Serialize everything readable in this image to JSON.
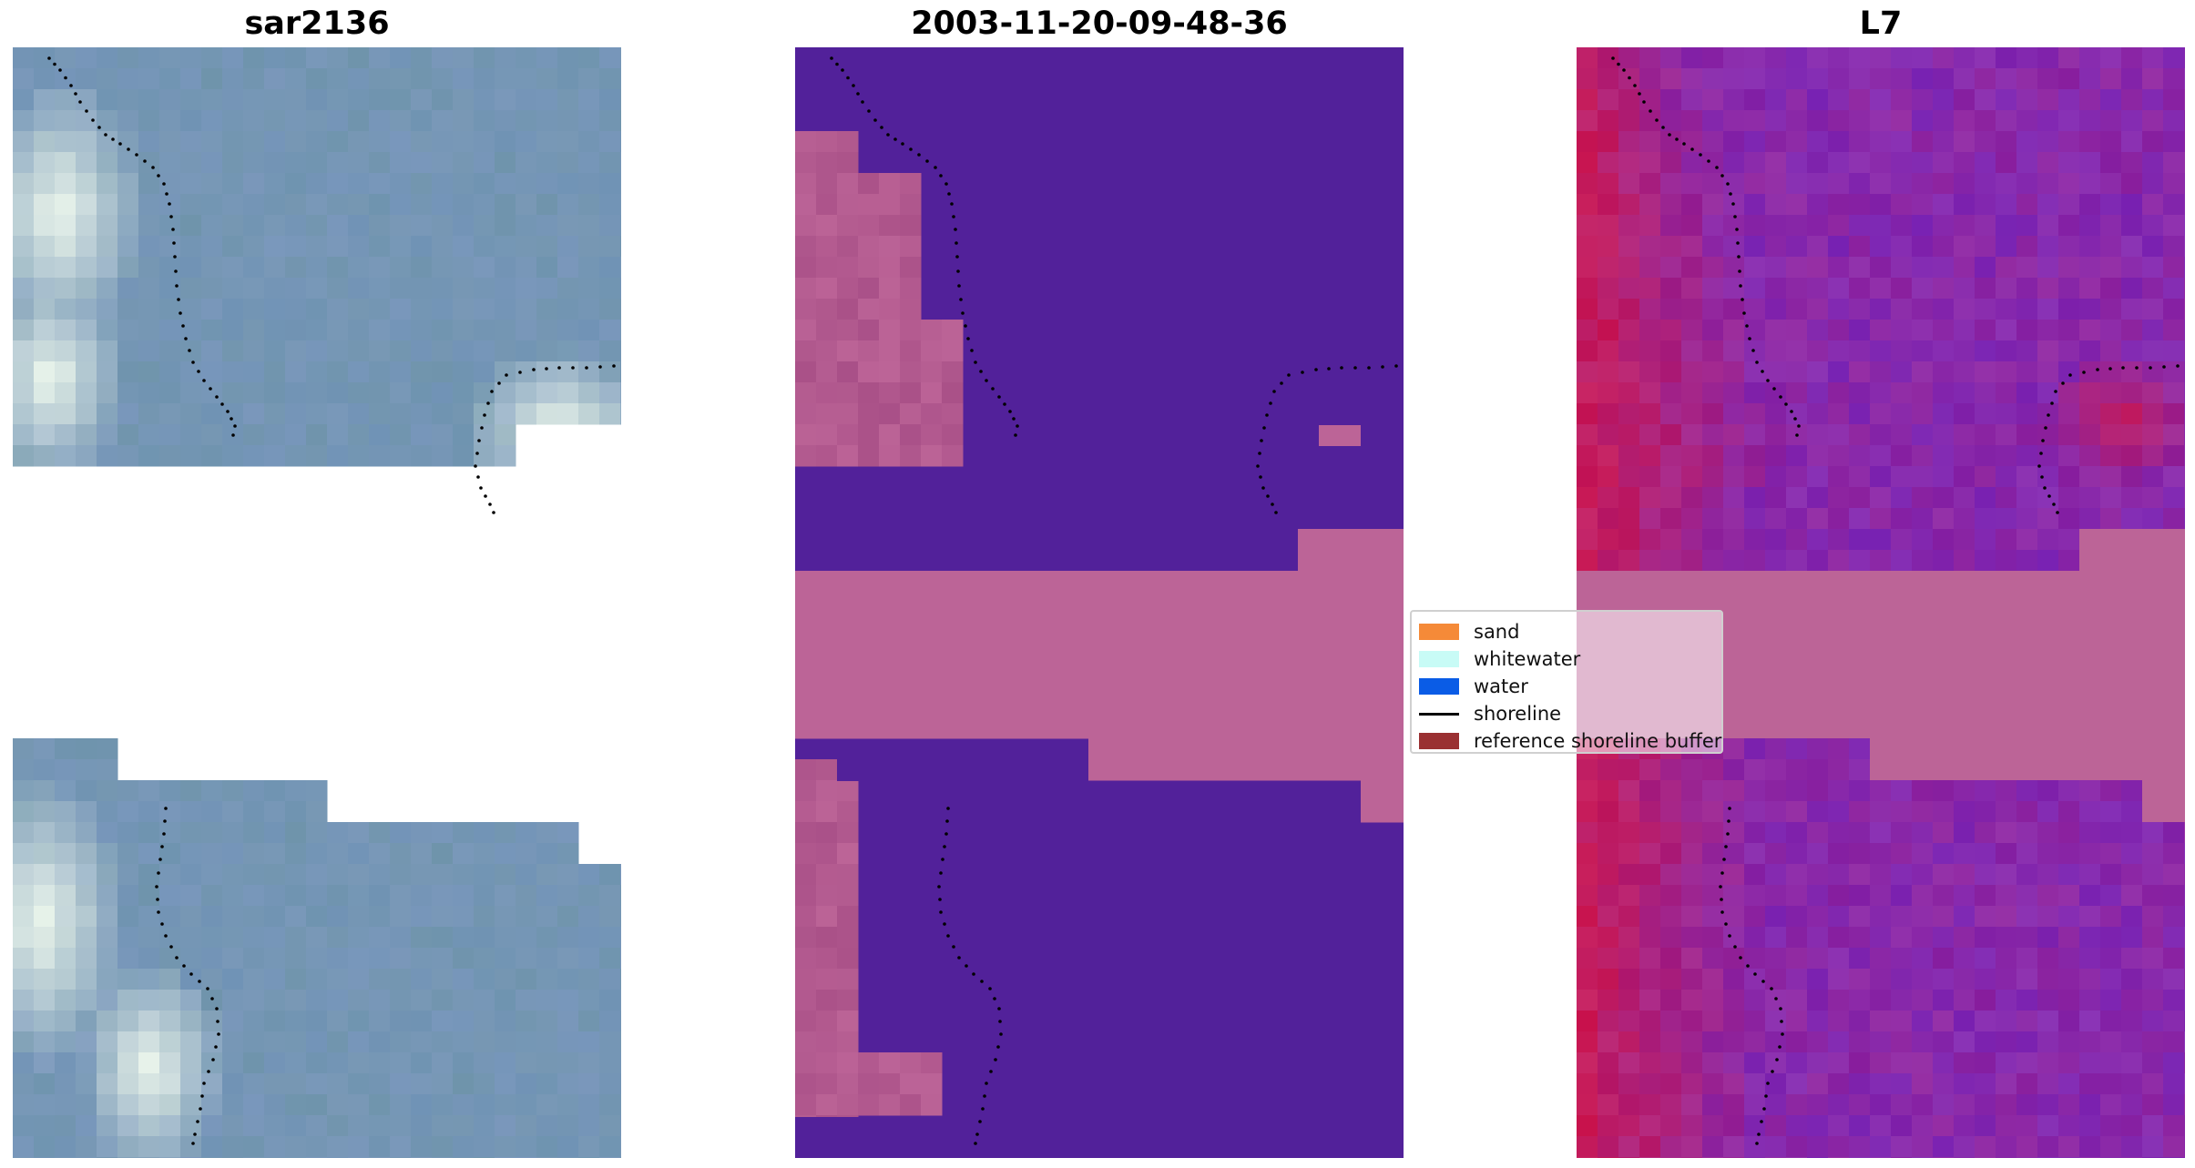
{
  "panels": [
    {
      "id": "rgb",
      "title": "sar2136"
    },
    {
      "id": "classified",
      "title": "2003-11-20-09-48-36"
    },
    {
      "id": "index",
      "title": "L7"
    }
  ],
  "legend": {
    "items": [
      {
        "label": "sand",
        "kind": "patch",
        "color": "#f58a38"
      },
      {
        "label": "whitewater",
        "kind": "patch",
        "color": "#c8fbf6"
      },
      {
        "label": "water",
        "kind": "patch",
        "color": "#0a5ce6"
      },
      {
        "label": "shoreline",
        "kind": "line",
        "color": "#000000"
      },
      {
        "label": "reference shoreline buffer",
        "kind": "patch",
        "color": "#9a3032"
      }
    ]
  },
  "colors": {
    "rgb_water": "#7093b6",
    "rgb_bright": "#e8f3ea",
    "classified_water": "#52219a",
    "classified_buffer": "#bc6497",
    "classified_land": "#b85e92",
    "index_purple": "#7f1fa8",
    "index_red": "#c8104a",
    "index_buffer": "#bc6497",
    "shoreline_dots": "#000000"
  }
}
